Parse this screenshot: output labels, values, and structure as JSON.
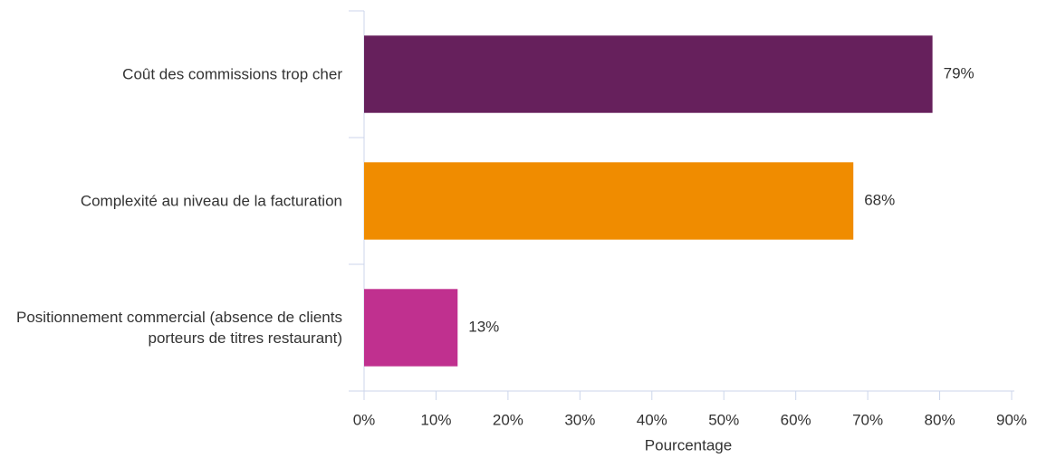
{
  "chart_data": {
    "type": "bar",
    "orientation": "horizontal",
    "categories": [
      "Coût des commissions trop cher",
      "Complexité au niveau de la facturation",
      "Positionnement commercial (absence de clients porteurs de titres restaurant)"
    ],
    "values": [
      79,
      68,
      13
    ],
    "value_labels": [
      "79%",
      "68%",
      "13%"
    ],
    "colors": [
      "#66205c",
      "#f08c00",
      "#c0308f"
    ],
    "xlim": [
      0,
      90
    ],
    "xticks": [
      {
        "value": 0,
        "label": "0%"
      },
      {
        "value": 10,
        "label": "10%"
      },
      {
        "value": 20,
        "label": "20%"
      },
      {
        "value": 30,
        "label": "30%"
      },
      {
        "value": 40,
        "label": "40%"
      },
      {
        "value": 50,
        "label": "50%"
      },
      {
        "value": 60,
        "label": "60%"
      },
      {
        "value": 70,
        "label": "70%"
      },
      {
        "value": 80,
        "label": "80%"
      },
      {
        "value": 90,
        "label": "90%"
      }
    ],
    "xlabel": "Pourcentage"
  }
}
